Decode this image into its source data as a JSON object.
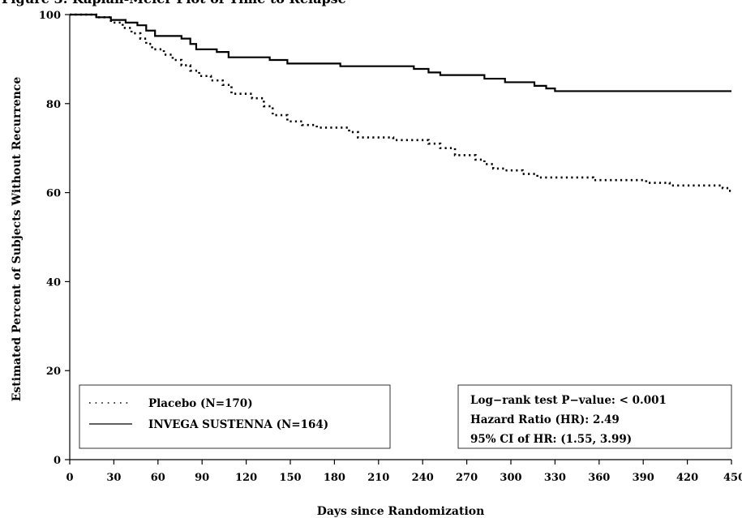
{
  "chart_data": {
    "type": "line",
    "title": "Figure 3: Kaplan-Meier Plot of Time to Relapse",
    "xlabel": "Days since Randomization",
    "ylabel": "Estimated Percent of Subjects Without Recurrence",
    "xlim": [
      0,
      450
    ],
    "ylim": [
      0,
      100
    ],
    "xticks": [
      0,
      30,
      60,
      90,
      120,
      150,
      180,
      210,
      240,
      270,
      300,
      330,
      360,
      390,
      420,
      450
    ],
    "yticks": [
      0,
      20,
      40,
      60,
      80,
      100
    ],
    "grid": false,
    "legend": {
      "placement": "bottom-left",
      "entries": [
        "Placebo (N=170)",
        "INVEGA SUSTENNA (N=164)"
      ]
    },
    "series": [
      {
        "name": "Placebo (N=170)",
        "style": "dotted",
        "color": "#000000",
        "points": [
          [
            0,
            100
          ],
          [
            18,
            99.4
          ],
          [
            28,
            98.2
          ],
          [
            36,
            97.0
          ],
          [
            42,
            95.8
          ],
          [
            48,
            94.6
          ],
          [
            52,
            93.4
          ],
          [
            56,
            92.2
          ],
          [
            64,
            91.0
          ],
          [
            70,
            89.8
          ],
          [
            76,
            88.6
          ],
          [
            82,
            87.4
          ],
          [
            88,
            86.2
          ],
          [
            96,
            85.2
          ],
          [
            104,
            84.2
          ],
          [
            110,
            82.2
          ],
          [
            124,
            81.2
          ],
          [
            132,
            79.4
          ],
          [
            138,
            77.4
          ],
          [
            148,
            76.0
          ],
          [
            158,
            75.2
          ],
          [
            168,
            74.6
          ],
          [
            190,
            73.6
          ],
          [
            196,
            72.4
          ],
          [
            220,
            71.8
          ],
          [
            244,
            71.0
          ],
          [
            252,
            70.0
          ],
          [
            262,
            68.4
          ],
          [
            276,
            67.4
          ],
          [
            282,
            66.4
          ],
          [
            288,
            65.4
          ],
          [
            296,
            65.0
          ],
          [
            308,
            64.2
          ],
          [
            318,
            63.4
          ],
          [
            356,
            62.8
          ],
          [
            392,
            62.2
          ],
          [
            408,
            61.6
          ],
          [
            444,
            61.0
          ],
          [
            448,
            60.4
          ],
          [
            450,
            60.4
          ]
        ]
      },
      {
        "name": "INVEGA SUSTENNA (N=164)",
        "style": "solid",
        "color": "#000000",
        "points": [
          [
            0,
            100
          ],
          [
            18,
            99.4
          ],
          [
            28,
            98.8
          ],
          [
            38,
            98.2
          ],
          [
            46,
            97.6
          ],
          [
            52,
            96.4
          ],
          [
            58,
            95.2
          ],
          [
            76,
            94.6
          ],
          [
            82,
            93.4
          ],
          [
            86,
            92.2
          ],
          [
            100,
            91.6
          ],
          [
            108,
            90.4
          ],
          [
            136,
            89.8
          ],
          [
            148,
            89.0
          ],
          [
            184,
            88.4
          ],
          [
            234,
            87.8
          ],
          [
            244,
            87.0
          ],
          [
            252,
            86.4
          ],
          [
            282,
            85.6
          ],
          [
            296,
            84.8
          ],
          [
            316,
            84.0
          ],
          [
            324,
            83.4
          ],
          [
            330,
            82.8
          ],
          [
            450,
            82.8
          ]
        ]
      }
    ],
    "annotations": [
      "Log−rank test P−value: < 0.001",
      "Hazard Ratio (HR): 2.49",
      "95% CI of HR: (1.55, 3.99)"
    ]
  }
}
